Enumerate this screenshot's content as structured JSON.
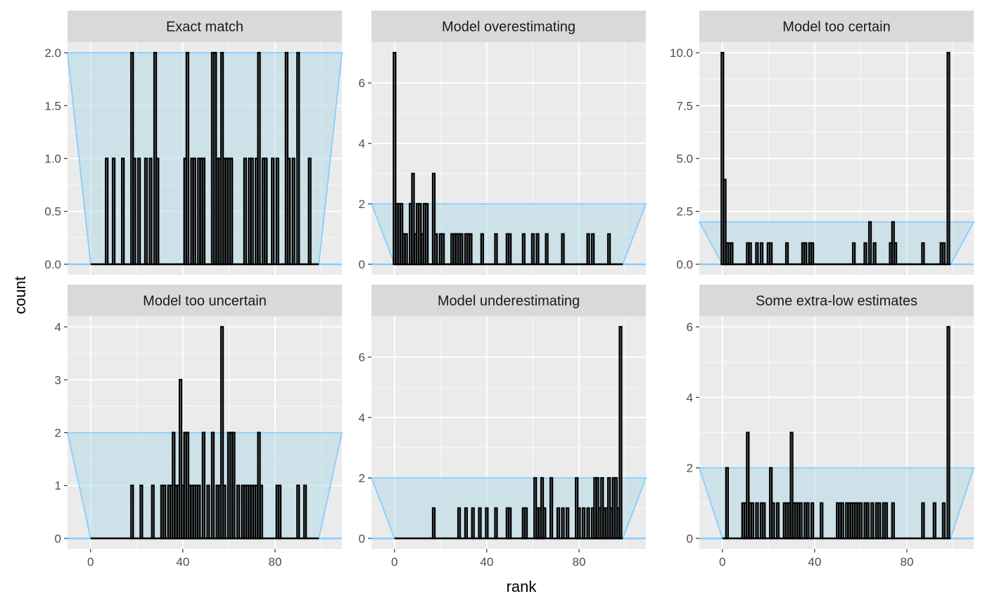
{
  "chart_data": {
    "type": "bar",
    "xlabel": "rank",
    "ylabel": "count",
    "xlim": [
      -10,
      109
    ],
    "x_ticks": [
      0,
      40,
      80
    ],
    "colors": {
      "bars": "#000000",
      "band_fill": "#add8e6",
      "band_line": "#87ceff",
      "panel_bg": "#ebebeb",
      "strip_bg": "#d9d9d9",
      "grid": "#ffffff"
    },
    "band": {
      "lower_count": 0,
      "upper_count": 2,
      "rank_min": 0,
      "rank_max": 99,
      "outer_left": -10,
      "outer_right": 109
    },
    "panels": [
      {
        "title": "Exact match",
        "ylim": [
          -0.1,
          2.1
        ],
        "y_ticks": [
          0,
          0.5,
          1,
          1.5,
          2
        ],
        "y_tick_labels": [
          "0.0",
          "0.5",
          "1.0",
          "1.5",
          "2.0"
        ],
        "counts": [
          [
            7,
            1
          ],
          [
            10,
            1
          ],
          [
            14,
            1
          ],
          [
            18,
            2
          ],
          [
            19,
            1
          ],
          [
            21,
            1
          ],
          [
            24,
            1
          ],
          [
            26,
            1
          ],
          [
            28,
            2
          ],
          [
            29,
            1
          ],
          [
            41,
            1
          ],
          [
            42,
            2
          ],
          [
            44,
            1
          ],
          [
            45,
            1
          ],
          [
            47,
            1
          ],
          [
            48,
            1
          ],
          [
            49,
            1
          ],
          [
            53,
            2
          ],
          [
            54,
            2
          ],
          [
            55,
            1
          ],
          [
            56,
            1
          ],
          [
            57,
            2
          ],
          [
            58,
            1
          ],
          [
            59,
            1
          ],
          [
            60,
            1
          ],
          [
            61,
            1
          ],
          [
            67,
            1
          ],
          [
            69,
            1
          ],
          [
            70,
            1
          ],
          [
            72,
            1
          ],
          [
            73,
            2
          ],
          [
            75,
            1
          ],
          [
            76,
            1
          ],
          [
            79,
            1
          ],
          [
            81,
            1
          ],
          [
            85,
            2
          ],
          [
            86,
            1
          ],
          [
            88,
            1
          ],
          [
            90,
            2
          ],
          [
            95,
            1
          ]
        ]
      },
      {
        "title": "Model overestimating",
        "ylim": [
          -0.35,
          7.35
        ],
        "y_ticks": [
          0,
          2,
          4,
          6
        ],
        "y_tick_labels": [
          "0",
          "2",
          "4",
          "6"
        ],
        "counts": [
          [
            0,
            7
          ],
          [
            1,
            2
          ],
          [
            2,
            2
          ],
          [
            3,
            2
          ],
          [
            4,
            1
          ],
          [
            5,
            1
          ],
          [
            7,
            2
          ],
          [
            8,
            3
          ],
          [
            9,
            1
          ],
          [
            10,
            2
          ],
          [
            11,
            2
          ],
          [
            12,
            1
          ],
          [
            13,
            2
          ],
          [
            14,
            2
          ],
          [
            17,
            3
          ],
          [
            18,
            1
          ],
          [
            20,
            1
          ],
          [
            21,
            1
          ],
          [
            25,
            1
          ],
          [
            26,
            1
          ],
          [
            27,
            1
          ],
          [
            28,
            1
          ],
          [
            29,
            1
          ],
          [
            31,
            1
          ],
          [
            32,
            1
          ],
          [
            33,
            1
          ],
          [
            38,
            1
          ],
          [
            44,
            1
          ],
          [
            49,
            1
          ],
          [
            50,
            1
          ],
          [
            56,
            1
          ],
          [
            60,
            1
          ],
          [
            62,
            1
          ],
          [
            66,
            1
          ],
          [
            73,
            1
          ],
          [
            84,
            1
          ],
          [
            86,
            1
          ],
          [
            93,
            1
          ]
        ]
      },
      {
        "title": "Model too certain",
        "ylim": [
          -0.5,
          10.5
        ],
        "y_ticks": [
          0,
          2.5,
          5,
          7.5,
          10
        ],
        "y_tick_labels": [
          "0.0",
          "2.5",
          "5.0",
          "7.5",
          "10.0"
        ],
        "counts": [
          [
            0,
            10
          ],
          [
            1,
            4
          ],
          [
            2,
            1
          ],
          [
            3,
            1
          ],
          [
            4,
            1
          ],
          [
            11,
            1
          ],
          [
            12,
            1
          ],
          [
            15,
            1
          ],
          [
            17,
            1
          ],
          [
            20,
            1
          ],
          [
            21,
            1
          ],
          [
            28,
            1
          ],
          [
            35,
            1
          ],
          [
            36,
            1
          ],
          [
            38,
            1
          ],
          [
            39,
            1
          ],
          [
            57,
            1
          ],
          [
            62,
            1
          ],
          [
            64,
            2
          ],
          [
            66,
            1
          ],
          [
            73,
            1
          ],
          [
            74,
            2
          ],
          [
            75,
            1
          ],
          [
            87,
            1
          ],
          [
            95,
            1
          ],
          [
            96,
            1
          ],
          [
            98,
            10
          ]
        ]
      },
      {
        "title": "Model too uncertain",
        "ylim": [
          -0.2,
          4.2
        ],
        "y_ticks": [
          0,
          1,
          2,
          3,
          4
        ],
        "y_tick_labels": [
          "0",
          "1",
          "2",
          "3",
          "4"
        ],
        "counts": [
          [
            18,
            1
          ],
          [
            22,
            1
          ],
          [
            27,
            1
          ],
          [
            31,
            1
          ],
          [
            32,
            1
          ],
          [
            34,
            1
          ],
          [
            35,
            1
          ],
          [
            36,
            2
          ],
          [
            37,
            1
          ],
          [
            38,
            1
          ],
          [
            39,
            3
          ],
          [
            40,
            1
          ],
          [
            41,
            2
          ],
          [
            42,
            2
          ],
          [
            43,
            1
          ],
          [
            44,
            1
          ],
          [
            45,
            1
          ],
          [
            46,
            1
          ],
          [
            47,
            1
          ],
          [
            49,
            2
          ],
          [
            51,
            1
          ],
          [
            53,
            2
          ],
          [
            55,
            1
          ],
          [
            56,
            1
          ],
          [
            57,
            4
          ],
          [
            58,
            1
          ],
          [
            60,
            2
          ],
          [
            61,
            2
          ],
          [
            62,
            2
          ],
          [
            64,
            1
          ],
          [
            66,
            1
          ],
          [
            67,
            1
          ],
          [
            68,
            1
          ],
          [
            69,
            1
          ],
          [
            70,
            1
          ],
          [
            71,
            1
          ],
          [
            72,
            1
          ],
          [
            73,
            2
          ],
          [
            74,
            1
          ],
          [
            81,
            1
          ],
          [
            82,
            1
          ],
          [
            90,
            1
          ],
          [
            93,
            1
          ]
        ]
      },
      {
        "title": "Model underestimating",
        "ylim": [
          -0.35,
          7.35
        ],
        "y_ticks": [
          0,
          2,
          4,
          6
        ],
        "y_tick_labels": [
          "0",
          "2",
          "4",
          "6"
        ],
        "counts": [
          [
            17,
            1
          ],
          [
            28,
            1
          ],
          [
            31,
            1
          ],
          [
            34,
            1
          ],
          [
            37,
            1
          ],
          [
            40,
            1
          ],
          [
            44,
            1
          ],
          [
            49,
            1
          ],
          [
            50,
            1
          ],
          [
            56,
            1
          ],
          [
            57,
            1
          ],
          [
            61,
            2
          ],
          [
            62,
            1
          ],
          [
            63,
            1
          ],
          [
            64,
            2
          ],
          [
            65,
            1
          ],
          [
            68,
            2
          ],
          [
            71,
            1
          ],
          [
            73,
            1
          ],
          [
            75,
            1
          ],
          [
            79,
            2
          ],
          [
            80,
            1
          ],
          [
            82,
            1
          ],
          [
            84,
            1
          ],
          [
            86,
            1
          ],
          [
            87,
            2
          ],
          [
            88,
            2
          ],
          [
            89,
            1
          ],
          [
            90,
            2
          ],
          [
            91,
            1
          ],
          [
            92,
            1
          ],
          [
            93,
            2
          ],
          [
            94,
            1
          ],
          [
            95,
            2
          ],
          [
            96,
            2
          ],
          [
            97,
            1
          ],
          [
            98,
            7
          ]
        ]
      },
      {
        "title": "Some extra-low estimates",
        "ylim": [
          -0.3,
          6.3
        ],
        "y_ticks": [
          0,
          2,
          4,
          6
        ],
        "y_tick_labels": [
          "0",
          "2",
          "4",
          "6"
        ],
        "counts": [
          [
            2,
            2
          ],
          [
            9,
            1
          ],
          [
            10,
            1
          ],
          [
            11,
            3
          ],
          [
            12,
            1
          ],
          [
            13,
            1
          ],
          [
            15,
            1
          ],
          [
            17,
            1
          ],
          [
            18,
            1
          ],
          [
            21,
            2
          ],
          [
            22,
            1
          ],
          [
            24,
            1
          ],
          [
            27,
            1
          ],
          [
            28,
            1
          ],
          [
            29,
            1
          ],
          [
            30,
            3
          ],
          [
            31,
            1
          ],
          [
            32,
            1
          ],
          [
            33,
            1
          ],
          [
            34,
            1
          ],
          [
            36,
            1
          ],
          [
            37,
            1
          ],
          [
            39,
            1
          ],
          [
            43,
            1
          ],
          [
            50,
            1
          ],
          [
            51,
            1
          ],
          [
            52,
            1
          ],
          [
            54,
            1
          ],
          [
            55,
            1
          ],
          [
            56,
            1
          ],
          [
            57,
            1
          ],
          [
            58,
            1
          ],
          [
            59,
            1
          ],
          [
            60,
            1
          ],
          [
            62,
            1
          ],
          [
            63,
            1
          ],
          [
            65,
            1
          ],
          [
            67,
            1
          ],
          [
            68,
            1
          ],
          [
            70,
            1
          ],
          [
            71,
            1
          ],
          [
            74,
            1
          ],
          [
            87,
            1
          ],
          [
            92,
            1
          ],
          [
            96,
            1
          ],
          [
            98,
            6
          ]
        ]
      }
    ]
  }
}
